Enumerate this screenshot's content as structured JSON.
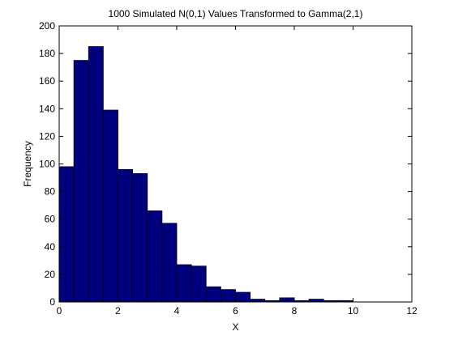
{
  "chart_data": {
    "type": "bar",
    "title": "1000 Simulated N(0,1) Values Transformed to Gamma(2,1)",
    "xlabel": "X",
    "ylabel": "Frequency",
    "xlim": [
      0,
      12
    ],
    "ylim": [
      0,
      200
    ],
    "xticks": [
      0,
      2,
      4,
      6,
      8,
      10,
      12
    ],
    "yticks": [
      0,
      20,
      40,
      60,
      80,
      100,
      120,
      140,
      160,
      180,
      200
    ],
    "grid": false,
    "bar_color": "#00007f",
    "bin_edges": [
      0,
      0.5,
      1.0,
      1.5,
      2.0,
      2.5,
      3.0,
      3.5,
      4.0,
      4.5,
      5.0,
      5.5,
      6.0,
      6.5,
      7.0,
      7.5,
      8.0,
      8.5,
      9.0,
      9.5,
      10.0
    ],
    "values": [
      98,
      175,
      185,
      139,
      96,
      93,
      66,
      57,
      27,
      26,
      11,
      9,
      7,
      2,
      1,
      3,
      1,
      2,
      1,
      1
    ]
  }
}
